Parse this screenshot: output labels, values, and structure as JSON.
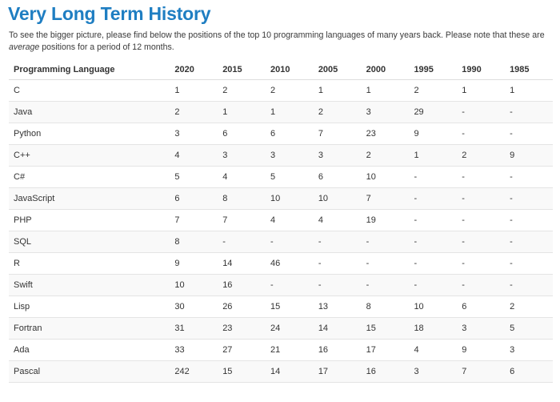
{
  "title": "Very Long Term History",
  "intro": {
    "text_before": "To see the bigger picture, please find below the positions of the top 10 programming languages of many years back. Please note that these are ",
    "emphasis": "average",
    "text_after": " positions for a period of 12 months."
  },
  "table": {
    "headers": [
      "Programming Language",
      "2020",
      "2015",
      "2010",
      "2005",
      "2000",
      "1995",
      "1990",
      "1985"
    ],
    "rows": [
      [
        "C",
        "1",
        "2",
        "2",
        "1",
        "1",
        "2",
        "1",
        "1"
      ],
      [
        "Java",
        "2",
        "1",
        "1",
        "2",
        "3",
        "29",
        "-",
        "-"
      ],
      [
        "Python",
        "3",
        "6",
        "6",
        "7",
        "23",
        "9",
        "-",
        "-"
      ],
      [
        "C++",
        "4",
        "3",
        "3",
        "3",
        "2",
        "1",
        "2",
        "9"
      ],
      [
        "C#",
        "5",
        "4",
        "5",
        "6",
        "10",
        "-",
        "-",
        "-"
      ],
      [
        "JavaScript",
        "6",
        "8",
        "10",
        "10",
        "7",
        "-",
        "-",
        "-"
      ],
      [
        "PHP",
        "7",
        "7",
        "4",
        "4",
        "19",
        "-",
        "-",
        "-"
      ],
      [
        "SQL",
        "8",
        "-",
        "-",
        "-",
        "-",
        "-",
        "-",
        "-"
      ],
      [
        "R",
        "9",
        "14",
        "46",
        "-",
        "-",
        "-",
        "-",
        "-"
      ],
      [
        "Swift",
        "10",
        "16",
        "-",
        "-",
        "-",
        "-",
        "-",
        "-"
      ],
      [
        "Lisp",
        "30",
        "26",
        "15",
        "13",
        "8",
        "10",
        "6",
        "2"
      ],
      [
        "Fortran",
        "31",
        "23",
        "24",
        "14",
        "15",
        "18",
        "3",
        "5"
      ],
      [
        "Ada",
        "33",
        "27",
        "21",
        "16",
        "17",
        "4",
        "9",
        "3"
      ],
      [
        "Pascal",
        "242",
        "15",
        "14",
        "17",
        "16",
        "3",
        "7",
        "6"
      ]
    ]
  }
}
